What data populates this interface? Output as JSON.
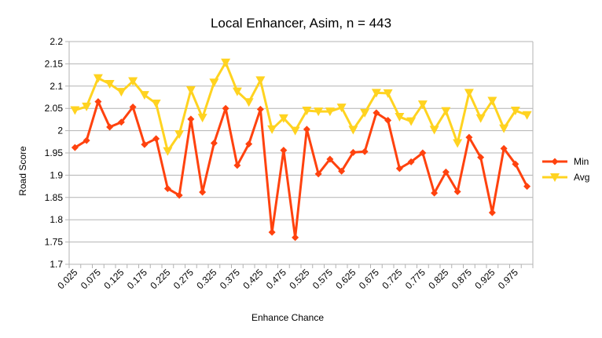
{
  "chart_data": {
    "type": "line",
    "title": "Local Enhancer, Asim, n = 443",
    "xlabel": "Enhance Chance",
    "ylabel": "Road Score",
    "ylim": [
      1.7,
      2.2
    ],
    "yticks": [
      "1.7",
      "1.75",
      "1.8",
      "1.85",
      "1.9",
      "1.95",
      "2",
      "2.05",
      "2.1",
      "2.15",
      "2.2"
    ],
    "grid": "horizontal",
    "legend": "right",
    "x": [
      0.025,
      0.05,
      0.075,
      0.1,
      0.125,
      0.15,
      0.175,
      0.2,
      0.225,
      0.25,
      0.275,
      0.3,
      0.325,
      0.35,
      0.375,
      0.4,
      0.425,
      0.45,
      0.475,
      0.5,
      0.525,
      0.55,
      0.575,
      0.6,
      0.625,
      0.65,
      0.675,
      0.7,
      0.725,
      0.75,
      0.775,
      0.8,
      0.825,
      0.85,
      0.875,
      0.9,
      0.925,
      0.95,
      0.975,
      1.0
    ],
    "x_tick_labels": [
      "0.025",
      "0.075",
      "0.125",
      "0.175",
      "0.225",
      "0.275",
      "0.325",
      "0.375",
      "0.425",
      "0.475",
      "0.525",
      "0.575",
      "0.625",
      "0.675",
      "0.725",
      "0.775",
      "0.825",
      "0.875",
      "0.925",
      "0.975"
    ],
    "series": [
      {
        "name": "Min",
        "color": "#ff420e",
        "marker": "diamond",
        "values": [
          1.962,
          1.978,
          2.065,
          2.008,
          2.019,
          2.053,
          1.969,
          1.982,
          1.87,
          1.855,
          2.026,
          1.862,
          1.972,
          2.05,
          1.922,
          1.97,
          2.048,
          1.772,
          1.956,
          1.76,
          2.003,
          1.903,
          1.936,
          1.909,
          1.951,
          1.953,
          2.04,
          2.023,
          1.915,
          1.93,
          1.95,
          1.86,
          1.907,
          1.863,
          1.985,
          1.94,
          1.816,
          1.96,
          1.925,
          1.875
        ]
      },
      {
        "name": "Avg",
        "color": "#ffd320",
        "marker": "triangle-down",
        "values": [
          2.046,
          2.054,
          2.118,
          2.105,
          2.087,
          2.111,
          2.08,
          2.061,
          1.954,
          1.992,
          2.091,
          2.029,
          2.108,
          2.153,
          2.088,
          2.064,
          2.113,
          2.003,
          2.028,
          2.0,
          2.045,
          2.043,
          2.043,
          2.052,
          2.002,
          2.04,
          2.085,
          2.084,
          2.031,
          2.021,
          2.059,
          2.002,
          2.044,
          1.972,
          2.085,
          2.028,
          2.067,
          2.005,
          2.045,
          2.035
        ]
      }
    ]
  }
}
